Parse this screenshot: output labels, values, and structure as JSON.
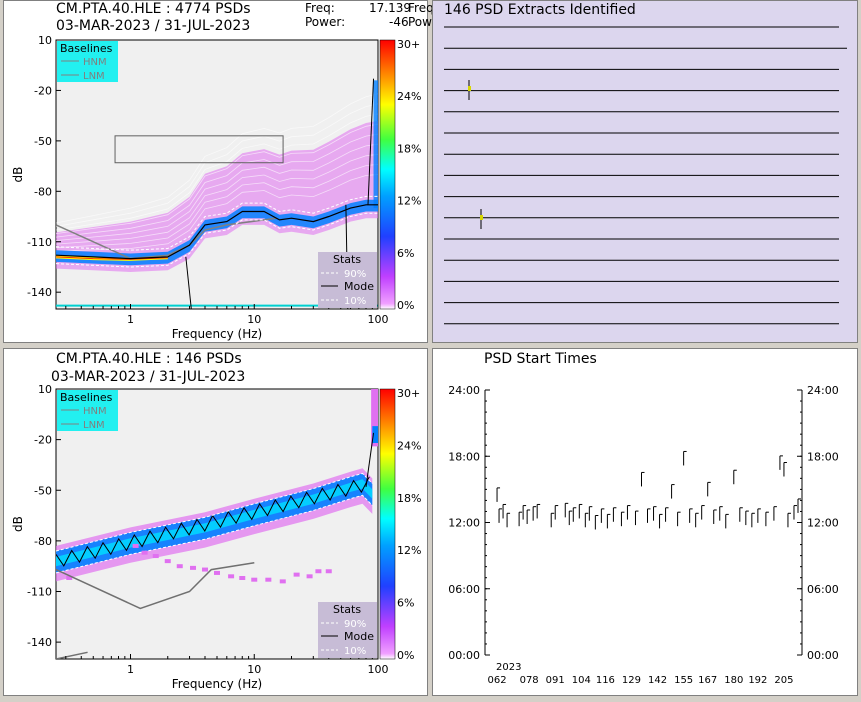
{
  "top_left": {
    "title_line1": "CM.PTA.40.HLE : 4774 PSDs",
    "title_line2": "03-MAR-2023 / 31-JUL-2023",
    "freq_label": "Freq:",
    "freq_value": "17.139",
    "freq_trunc": "Freq",
    "power_label": "Power:",
    "power_value": "-46",
    "power_trunc": "Pow"
  },
  "bottom_left": {
    "title_line1": "CM.PTA.40.HLE : 146 PSDs",
    "title_line2": "03-MAR-2023 / 31-JUL-2023"
  },
  "extracts": {
    "title": "146 PSD Extracts Identified"
  },
  "starttimes": {
    "title": "PSD Start Times"
  },
  "legend": {
    "baselines_title": "Baselines",
    "hnm": "HNM",
    "lnm": "LNM",
    "stats_title": "Stats",
    "p90": "90%",
    "mode": "Mode",
    "p10": "10%"
  },
  "colors": {
    "baseline_box": "#22f0f0",
    "stats_box": "#c7bcd6",
    "plot_bg": "#f0f0f0",
    "panel_purple": "#dcd6ee",
    "ppsd_dense": "#0080ff",
    "ppsd_sparse": "#e070f0"
  },
  "chart_data": [
    {
      "type": "heatmap",
      "title": "CM.PTA.40.HLE : 4774 PSDs",
      "xlabel": "Frequency (Hz)",
      "ylabel": "dB",
      "x_scale": "log",
      "xlim": [
        0.25,
        100
      ],
      "ylim": [
        -150,
        10
      ],
      "x_ticks": [
        "1",
        "10",
        "100"
      ],
      "y_ticks": [
        "10",
        "-20",
        "-50",
        "-80",
        "-110",
        "-140"
      ],
      "colorbar_ticks": [
        "30+",
        "24%",
        "18%",
        "12%",
        "6%",
        "0%"
      ],
      "mode_curve": {
        "freq": [
          0.25,
          0.5,
          1,
          2,
          3,
          4,
          6,
          8,
          12,
          16,
          20,
          30,
          40,
          60,
          80,
          100
        ],
        "db": [
          -118,
          -119,
          -120,
          -119,
          -112,
          -100,
          -98,
          -92,
          -92,
          -97,
          -96,
          -98,
          -95,
          -90,
          -88,
          -88
        ]
      },
      "grid": false
    },
    {
      "type": "heatmap",
      "title": "CM.PTA.40.HLE : 146 PSDs",
      "xlabel": "Frequency (Hz)",
      "ylabel": "dB",
      "x_scale": "log",
      "xlim": [
        0.25,
        100
      ],
      "ylim": [
        -150,
        10
      ],
      "x_ticks": [
        "1",
        "10",
        "100"
      ],
      "y_ticks": [
        "10",
        "-20",
        "-50",
        "-80",
        "-110",
        "-140"
      ],
      "colorbar_ticks": [
        "30+",
        "24%",
        "18%",
        "12%",
        "6%",
        "0%"
      ],
      "mode_curve": {
        "freq": [
          0.25,
          1,
          4,
          10,
          30,
          60,
          75,
          90
        ],
        "db": [
          -92,
          -81,
          -72,
          -64,
          -55,
          -48,
          -46,
          -52
        ]
      },
      "grid": false
    },
    {
      "type": "scatter",
      "title": "PSD Start Times",
      "x_ticks": [
        "062",
        "078",
        "091",
        "104",
        "116",
        "129",
        "142",
        "155",
        "167",
        "180",
        "192",
        "205"
      ],
      "x_year": "2023",
      "y_ticks": [
        "24:00",
        "18:00",
        "12:00",
        "06:00",
        "00:00"
      ],
      "xlim": [
        56,
        214
      ],
      "ylim": [
        0,
        24
      ],
      "points": [
        {
          "day": 62,
          "hour": 14.5
        },
        {
          "day": 63,
          "hour": 12.6
        },
        {
          "day": 65,
          "hour": 13.0
        },
        {
          "day": 67,
          "hour": 12.2
        },
        {
          "day": 73,
          "hour": 12.3
        },
        {
          "day": 75,
          "hour": 12.9
        },
        {
          "day": 77,
          "hour": 12.5
        },
        {
          "day": 80,
          "hour": 12.8
        },
        {
          "day": 82,
          "hour": 13.0
        },
        {
          "day": 89,
          "hour": 12.2
        },
        {
          "day": 91,
          "hour": 12.9
        },
        {
          "day": 96,
          "hour": 13.1
        },
        {
          "day": 98,
          "hour": 12.4
        },
        {
          "day": 100,
          "hour": 12.7
        },
        {
          "day": 103,
          "hour": 13.0
        },
        {
          "day": 106,
          "hour": 12.2
        },
        {
          "day": 108,
          "hour": 12.8
        },
        {
          "day": 111,
          "hour": 12.0
        },
        {
          "day": 114,
          "hour": 12.6
        },
        {
          "day": 117,
          "hour": 12.1
        },
        {
          "day": 120,
          "hour": 12.7
        },
        {
          "day": 124,
          "hour": 12.3
        },
        {
          "day": 127,
          "hour": 12.9
        },
        {
          "day": 131,
          "hour": 12.4
        },
        {
          "day": 134,
          "hour": 15.9
        },
        {
          "day": 137,
          "hour": 12.6
        },
        {
          "day": 140,
          "hour": 12.8
        },
        {
          "day": 143,
          "hour": 12.1
        },
        {
          "day": 146,
          "hour": 12.7
        },
        {
          "day": 149,
          "hour": 14.8
        },
        {
          "day": 152,
          "hour": 12.3
        },
        {
          "day": 155,
          "hour": 17.8
        },
        {
          "day": 158,
          "hour": 12.6
        },
        {
          "day": 161,
          "hour": 12.2
        },
        {
          "day": 164,
          "hour": 12.9
        },
        {
          "day": 167,
          "hour": 15.0
        },
        {
          "day": 170,
          "hour": 12.5
        },
        {
          "day": 173,
          "hour": 12.8
        },
        {
          "day": 176,
          "hour": 12.1
        },
        {
          "day": 180,
          "hour": 16.1
        },
        {
          "day": 183,
          "hour": 12.7
        },
        {
          "day": 186,
          "hour": 12.4
        },
        {
          "day": 189,
          "hour": 12.2
        },
        {
          "day": 192,
          "hour": 12.6
        },
        {
          "day": 196,
          "hour": 12.3
        },
        {
          "day": 200,
          "hour": 12.8
        },
        {
          "day": 203,
          "hour": 17.4
        },
        {
          "day": 205,
          "hour": 16.8
        },
        {
          "day": 207,
          "hour": 12.2
        },
        {
          "day": 210,
          "hour": 12.9
        },
        {
          "day": 212,
          "hour": 13.5
        }
      ]
    }
  ]
}
